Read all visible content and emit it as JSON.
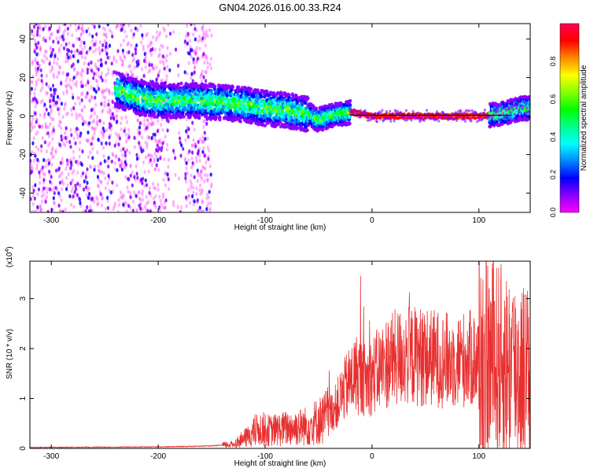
{
  "figure_title": "GN04.2026.016.00.33.R24",
  "chart_data": [
    {
      "type": "heatmap",
      "xlabel": "Height of straight line (km)",
      "ylabel": "Frequency (Hz)",
      "xlim": [
        -320,
        148
      ],
      "ylim": [
        -50,
        48
      ],
      "xticks": [
        -300,
        -200,
        -100,
        0,
        100
      ],
      "xtick_labels": [
        "-300",
        "-200",
        "-100",
        "0",
        "100"
      ],
      "yticks": [
        40,
        20,
        0,
        -20,
        -40
      ],
      "ytick_labels": [
        "40",
        "20",
        "0",
        "-20",
        "-40"
      ],
      "colorbar": {
        "label": "Normalized spectral amplitude",
        "range": [
          0,
          1
        ],
        "ticks": [
          0.0,
          0.2,
          0.4,
          0.6,
          0.8
        ],
        "tick_labels": [
          "0.0",
          "0.2",
          "0.4",
          "0.6",
          "0.8"
        ],
        "colors": [
          "#ff00ff",
          "#8800ff",
          "#0000ff",
          "#0088ff",
          "#00ffff",
          "#00ff88",
          "#00ff00",
          "#88ff00",
          "#ffff00",
          "#ff8800",
          "#ff0000",
          "#ff0055"
        ]
      },
      "signal_trace": {
        "x": [
          -240,
          -220,
          -200,
          -180,
          -160,
          -140,
          -120,
          -100,
          -80,
          -60,
          -50,
          -40,
          -30,
          -20,
          -10,
          0,
          20,
          40,
          60,
          80,
          100,
          120,
          140
        ],
        "y": [
          14,
          10,
          8,
          8,
          8,
          7,
          6,
          4,
          3,
          1,
          -2,
          0,
          1,
          2,
          1,
          0,
          0,
          0,
          0,
          0,
          0,
          1,
          4
        ]
      },
      "noise_regions": [
        [
          -320,
          -150
        ]
      ]
    },
    {
      "type": "line",
      "xlabel": "Height of straight line (km)",
      "ylabel": "SNR (10 * v/v)",
      "y_multiplier": "(x10",
      "y_multiplier_exp": "4",
      "y_multiplier_close": ")",
      "xlim": [
        -320,
        148
      ],
      "ylim": [
        0,
        3.75
      ],
      "xticks": [
        -300,
        -200,
        -100,
        0,
        100
      ],
      "xtick_labels": [
        "-300",
        "-200",
        "-100",
        "0",
        "100"
      ],
      "yticks": [
        0,
        1,
        2,
        3
      ],
      "ytick_labels": [
        "0",
        "1",
        "2",
        "3"
      ],
      "color": "#e83030",
      "envelope": {
        "x": [
          -320,
          -200,
          -150,
          -130,
          -115,
          -105,
          -95,
          -80,
          -60,
          -45,
          -35,
          -25,
          -15,
          -5,
          5,
          15,
          30,
          45,
          60,
          75,
          90,
          105,
          120,
          135,
          148
        ],
        "y": [
          0.02,
          0.03,
          0.05,
          0.08,
          0.25,
          0.4,
          0.35,
          0.4,
          0.45,
          0.6,
          0.8,
          1.2,
          1.5,
          1.35,
          1.55,
          1.75,
          1.85,
          1.85,
          1.8,
          1.75,
          1.8,
          1.75,
          1.7,
          1.6,
          1.5
        ]
      }
    }
  ]
}
